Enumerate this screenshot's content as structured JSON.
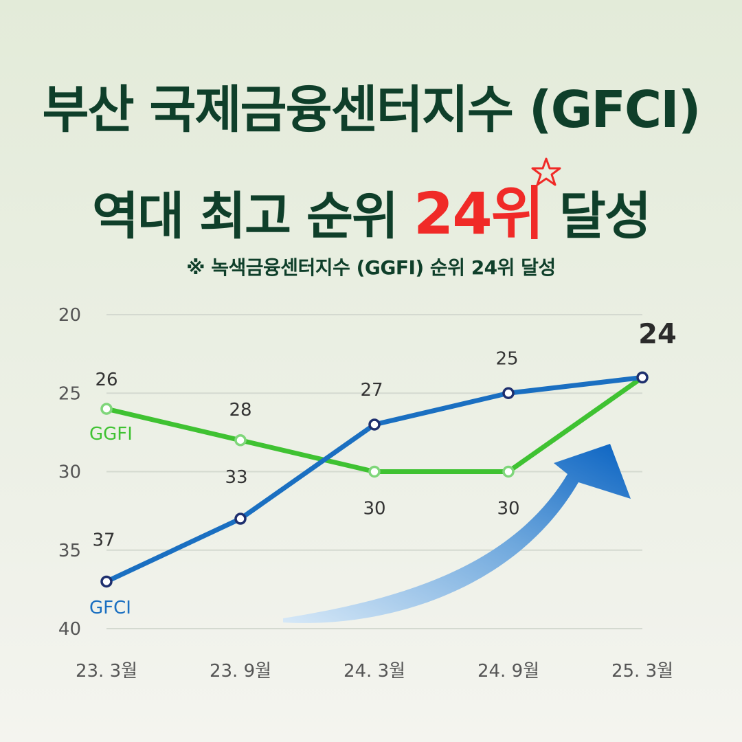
{
  "headline": {
    "line1": "부산 국제금융센터지수 (GFCI)",
    "line2_prefix": "역대 최고 순위 ",
    "line2_highlight": "24위",
    "line2_suffix": " 달성",
    "subtitle": "※ 녹색금융센터지수 (GGFI) 순위 24위 달성",
    "highlight_color": "#f02a27",
    "title_color": "#0f3f2a"
  },
  "chart_data": {
    "type": "line",
    "categories": [
      "23. 3월",
      "23. 9월",
      "24. 3월",
      "24. 9월",
      "25. 3월"
    ],
    "y_ticks": [
      20,
      25,
      30,
      35,
      40
    ],
    "ylim": [
      20,
      40
    ],
    "y_inverted": true,
    "grid": true,
    "series": [
      {
        "name": "GFCI",
        "values": [
          37,
          33,
          27,
          25,
          24
        ],
        "color": "#1a6fc1",
        "marker_color": "#1e2f6e",
        "labels": [
          "37",
          "33",
          "27",
          "25",
          "24"
        ]
      },
      {
        "name": "GGFI",
        "values": [
          26,
          28,
          30,
          30,
          24
        ],
        "color": "#3fc232",
        "marker_color": "#7fd67a",
        "labels": [
          "26",
          "28",
          "30",
          "30",
          ""
        ]
      }
    ],
    "annotation": {
      "type": "upward-trend-arrow",
      "color": "#1a6fc1"
    }
  }
}
